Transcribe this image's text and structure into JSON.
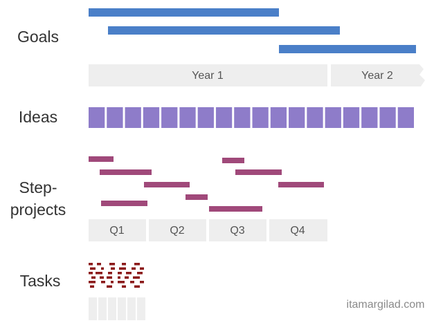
{
  "levels": [
    {
      "label": [
        "Goals"
      ]
    },
    {
      "label": [
        "Ideas"
      ]
    },
    {
      "label": [
        "Step-",
        "projects"
      ]
    },
    {
      "label": [
        "Tasks"
      ]
    }
  ],
  "timeline_years": [
    "Year 1",
    "Year 2"
  ],
  "timeline_quarters": [
    "Q1",
    "Q2",
    "Q3",
    "Q4"
  ],
  "footer": {
    "credit": "itamargilad.com"
  }
}
